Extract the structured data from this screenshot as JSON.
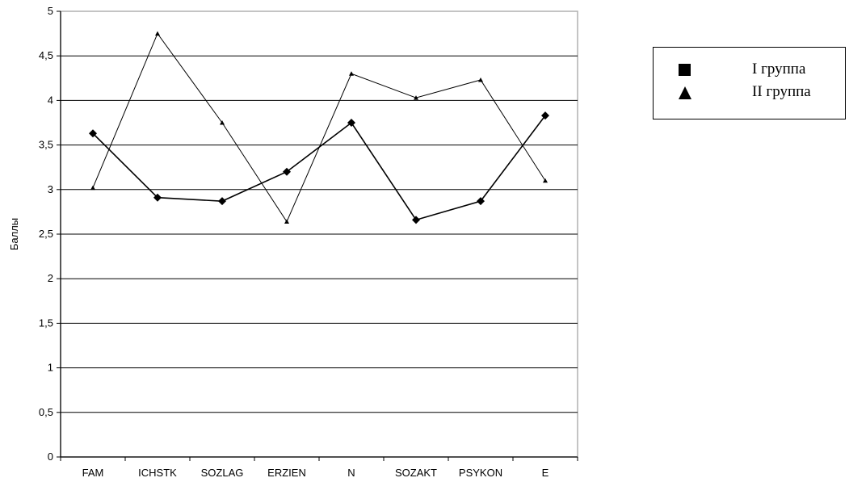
{
  "chart_data": {
    "type": "line",
    "title": "",
    "xlabel": "",
    "ylabel": "Баллы",
    "categories": [
      "FAM",
      "ICHSTK",
      "SOZLAG",
      "ERZIEN",
      "N",
      "SOZAKT",
      "PSYKON",
      "E"
    ],
    "ylim": [
      0,
      5
    ],
    "yticks": [
      "0",
      "0,5",
      "1",
      "1,5",
      "2",
      "2,5",
      "3",
      "3,5",
      "4",
      "4,5",
      "5"
    ],
    "grid": true,
    "legend_position": "right",
    "series": [
      {
        "name": "I группа",
        "marker": "diamond",
        "legend_marker": "square",
        "color": "#000000",
        "values": [
          3.63,
          2.91,
          2.87,
          3.2,
          3.75,
          2.66,
          2.87,
          3.83
        ]
      },
      {
        "name": "II группа",
        "marker": "triangle",
        "legend_marker": "triangle",
        "color": "#000000",
        "values": [
          3.02,
          4.75,
          3.75,
          2.64,
          4.3,
          4.03,
          4.23,
          3.1
        ]
      }
    ]
  }
}
